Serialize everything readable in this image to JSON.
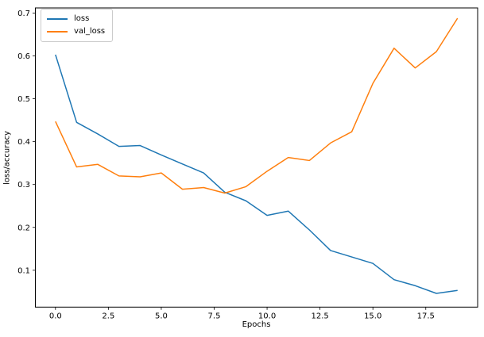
{
  "figure": {
    "background": "#ffffff"
  },
  "chart_data": {
    "type": "line",
    "title": "",
    "xlabel": "Epochs",
    "ylabel": "loss/accuracy",
    "x": [
      0,
      1,
      2,
      3,
      4,
      5,
      6,
      7,
      8,
      9,
      10,
      11,
      12,
      13,
      14,
      15,
      16,
      17,
      18,
      19
    ],
    "series": [
      {
        "name": "loss",
        "color": "#1f77b4",
        "values": [
          0.603,
          0.445,
          0.418,
          0.389,
          0.391,
          0.369,
          0.348,
          0.327,
          0.282,
          0.262,
          0.228,
          0.238,
          0.194,
          0.146,
          0.131,
          0.116,
          0.078,
          0.064,
          0.046,
          0.053
        ]
      },
      {
        "name": "val_loss",
        "color": "#ff7f0e",
        "values": [
          0.447,
          0.341,
          0.347,
          0.32,
          0.318,
          0.327,
          0.289,
          0.293,
          0.28,
          0.295,
          0.331,
          0.363,
          0.356,
          0.397,
          0.423,
          0.536,
          0.618,
          0.572,
          0.61,
          0.688
        ]
      }
    ],
    "xticks": {
      "values": [
        0,
        2.5,
        5,
        7.5,
        10,
        12.5,
        15,
        17.5
      ],
      "labels": [
        "0.0",
        "2.5",
        "5.0",
        "7.5",
        "10.0",
        "12.5",
        "15.0",
        "17.5"
      ]
    },
    "yticks": {
      "values": [
        0.1,
        0.2,
        0.3,
        0.4,
        0.5,
        0.6,
        0.7
      ],
      "labels": [
        "0.1",
        "0.2",
        "0.3",
        "0.4",
        "0.5",
        "0.6",
        "0.7"
      ]
    },
    "xlim": [
      -0.95,
      19.95
    ],
    "ylim": [
      0.014,
      0.712
    ],
    "grid": false,
    "line_width": 1.5,
    "axis_color": "#000000",
    "legend": {
      "position": "upper left",
      "entries": [
        "loss",
        "val_loss"
      ]
    }
  }
}
